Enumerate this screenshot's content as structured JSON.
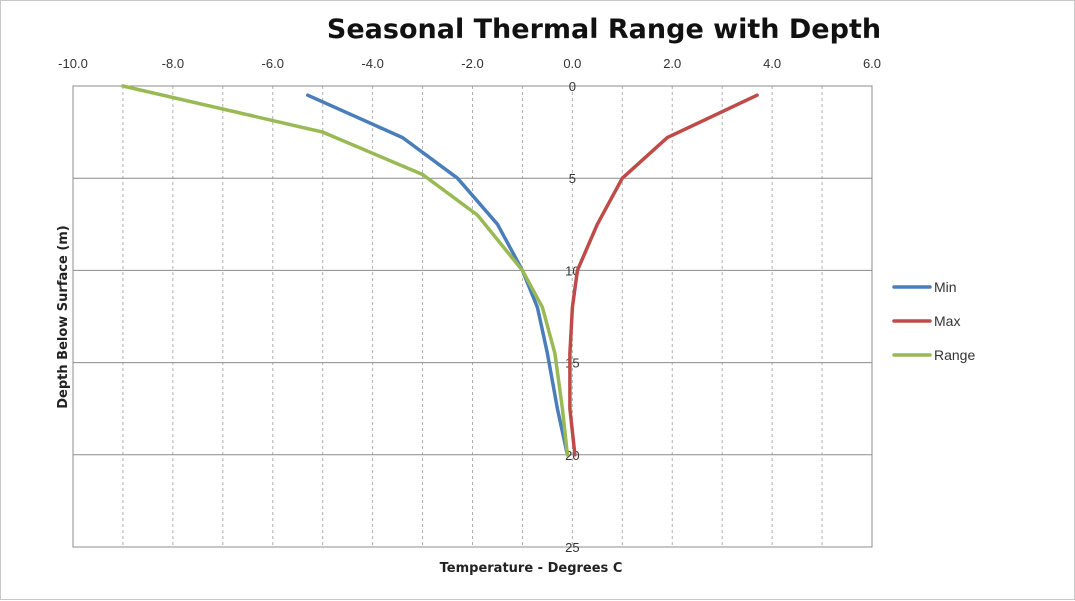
{
  "chart_data": {
    "type": "line",
    "title": "Seasonal Thermal Range with Depth",
    "xlabel": "Temperature - Degrees C",
    "ylabel": "Depth Below Surface (m)",
    "xlim": [
      -10.0,
      6.0
    ],
    "ylim": [
      0,
      25
    ],
    "y_inverted": true,
    "x_axis_position": "top",
    "x_ticks": [
      "-10.0",
      "-8.0",
      "-6.0",
      "-4.0",
      "-2.0",
      "0.0",
      "2.0",
      "4.0",
      "6.0"
    ],
    "y_ticks": [
      "0",
      "5",
      "10",
      "15",
      "20",
      "25"
    ],
    "grid": {
      "major_horizontal": true,
      "minor_vertical_dashed": true
    },
    "legend_position": "right",
    "series": [
      {
        "name": "Min",
        "color": "#4a7ebb",
        "points": [
          [
            -5.3,
            0.5
          ],
          [
            -3.4,
            2.8
          ],
          [
            -2.3,
            5.0
          ],
          [
            -1.5,
            7.5
          ],
          [
            -1.0,
            10.0
          ],
          [
            -0.7,
            12.0
          ],
          [
            -0.5,
            14.5
          ],
          [
            -0.3,
            17.5
          ],
          [
            -0.1,
            20.0
          ]
        ]
      },
      {
        "name": "Max",
        "color": "#be4b48",
        "points": [
          [
            3.7,
            0.5
          ],
          [
            1.9,
            2.8
          ],
          [
            1.0,
            5.0
          ],
          [
            0.5,
            7.5
          ],
          [
            0.1,
            10.0
          ],
          [
            0.0,
            12.0
          ],
          [
            -0.05,
            14.5
          ],
          [
            -0.05,
            17.5
          ],
          [
            0.05,
            20.0
          ]
        ]
      },
      {
        "name": "Range",
        "color": "#98b954",
        "points": [
          [
            -9.0,
            0.0
          ],
          [
            -5.0,
            2.5
          ],
          [
            -3.0,
            4.8
          ],
          [
            -1.9,
            7.0
          ],
          [
            -1.0,
            10.0
          ],
          [
            -0.6,
            12.0
          ],
          [
            -0.35,
            14.5
          ],
          [
            -0.2,
            17.5
          ],
          [
            -0.1,
            20.0
          ]
        ]
      }
    ]
  }
}
